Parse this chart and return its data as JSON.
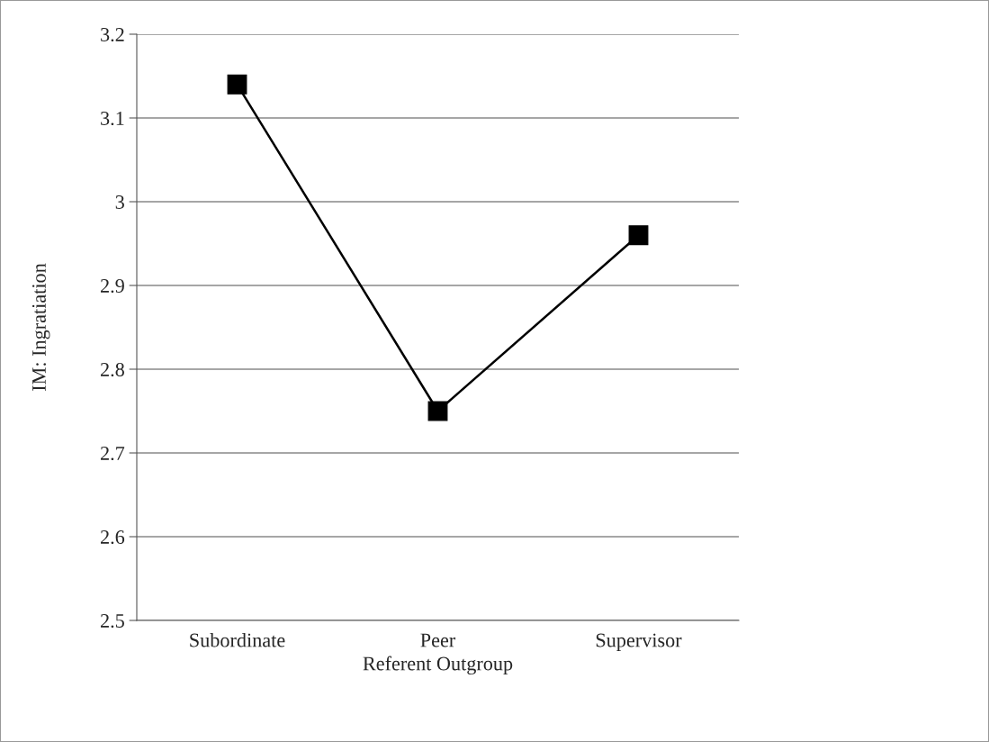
{
  "chart_data": {
    "type": "line",
    "xlabel": "Referent Outgroup",
    "ylabel": "IM: Ingratiation",
    "categories": [
      "Subordinate",
      "Peer",
      "Supervisor"
    ],
    "series": [
      {
        "color": "#000000",
        "values": [
          3.14,
          2.75,
          2.96
        ]
      }
    ],
    "ylim": [
      2.5,
      3.2
    ],
    "yticks": [
      2.5,
      2.6,
      2.7,
      2.8,
      2.9,
      3,
      3.1,
      3.2
    ],
    "grid": "y",
    "marker": "square",
    "line_style": "solid"
  }
}
